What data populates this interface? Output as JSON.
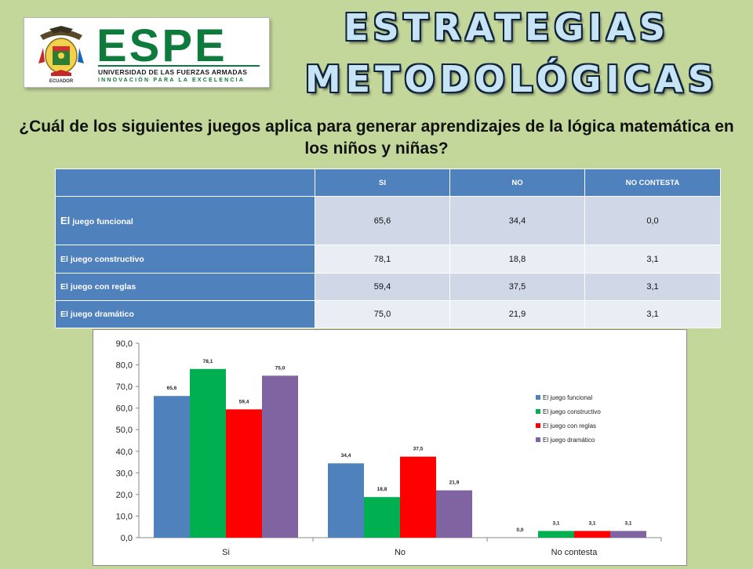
{
  "logo": {
    "word": "ESPE",
    "line1": "UNIVERSIDAD DE LAS FUERZAS ARMADAS",
    "line2": "INNOVACIÓN PARA LA EXCELENCIA",
    "seal_text": "ECUADOR"
  },
  "banner": {
    "line1": "ESTRATEGIAS",
    "line2": "METODOLÓGICAS"
  },
  "question": "¿Cuál de los siguientes juegos aplica para generar aprendizajes de la lógica matemática en los niños y niñas?",
  "table": {
    "headers": [
      "",
      "SI",
      "NO",
      "NO CONTESTA"
    ],
    "rows": [
      {
        "label_prefix": "El",
        "label": " juego funcional",
        "si": "65,6",
        "no": "34,4",
        "nc": "0,0"
      },
      {
        "label": "El juego constructivo",
        "si": "78,1",
        "no": "18,8",
        "nc": "3,1"
      },
      {
        "label": "El juego con reglas",
        "si": "59,4",
        "no": "37,5",
        "nc": "3,1"
      },
      {
        "label": "El juego dramático",
        "si": "75,0",
        "no": "21,9",
        "nc": "3,1"
      }
    ]
  },
  "colors": {
    "series": [
      "#4f81bd",
      "#00b050",
      "#ff0000",
      "#8064a2"
    ]
  },
  "chart_data": {
    "type": "bar",
    "categories": [
      "Si",
      "No",
      "No contesta"
    ],
    "series": [
      {
        "name": "El juego funcional",
        "values": [
          65.6,
          34.4,
          0.0
        ],
        "labels": [
          "65,6",
          "34,4",
          "0,0"
        ]
      },
      {
        "name": "El juego constructivo",
        "values": [
          78.1,
          18.8,
          3.1
        ],
        "labels": [
          "78,1",
          "18,8",
          "3,1"
        ]
      },
      {
        "name": "El juego con reglas",
        "values": [
          59.4,
          37.5,
          3.1
        ],
        "labels": [
          "59,4",
          "37,5",
          "3,1"
        ]
      },
      {
        "name": "El juego dramático",
        "values": [
          75.0,
          21.9,
          3.1
        ],
        "labels": [
          "75,0",
          "21,9",
          "3,1"
        ]
      }
    ],
    "ylim": [
      0,
      90
    ],
    "yticks": [
      "0,0",
      "10,0",
      "20,0",
      "30,0",
      "40,0",
      "50,0",
      "60,0",
      "70,0",
      "80,0",
      "90,0"
    ],
    "legend": "right",
    "grid": false
  }
}
